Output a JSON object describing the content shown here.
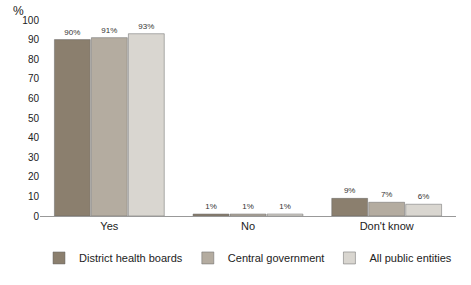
{
  "chart_data": {
    "type": "bar",
    "y_label": "%",
    "categories": [
      "Yes",
      "No",
      "Don't know"
    ],
    "series": [
      {
        "name": "District health boards",
        "color": "#8b7f6e",
        "values": [
          90,
          1,
          9
        ],
        "value_labels": [
          "90%",
          "1%",
          "9%"
        ]
      },
      {
        "name": "Central government",
        "color": "#b4aca0",
        "values": [
          91,
          1,
          7
        ],
        "value_labels": [
          "91%",
          "1%",
          "7%"
        ]
      },
      {
        "name": "All public entities",
        "color": "#d9d6d0",
        "values": [
          93,
          1,
          6
        ],
        "value_labels": [
          "93%",
          "1%",
          "6%"
        ]
      }
    ],
    "ylim": [
      0,
      100
    ],
    "yticks": [
      0,
      10,
      20,
      30,
      40,
      50,
      60,
      70,
      80,
      90,
      100
    ],
    "grid": false,
    "legend": "bottom",
    "data_labels": true
  }
}
